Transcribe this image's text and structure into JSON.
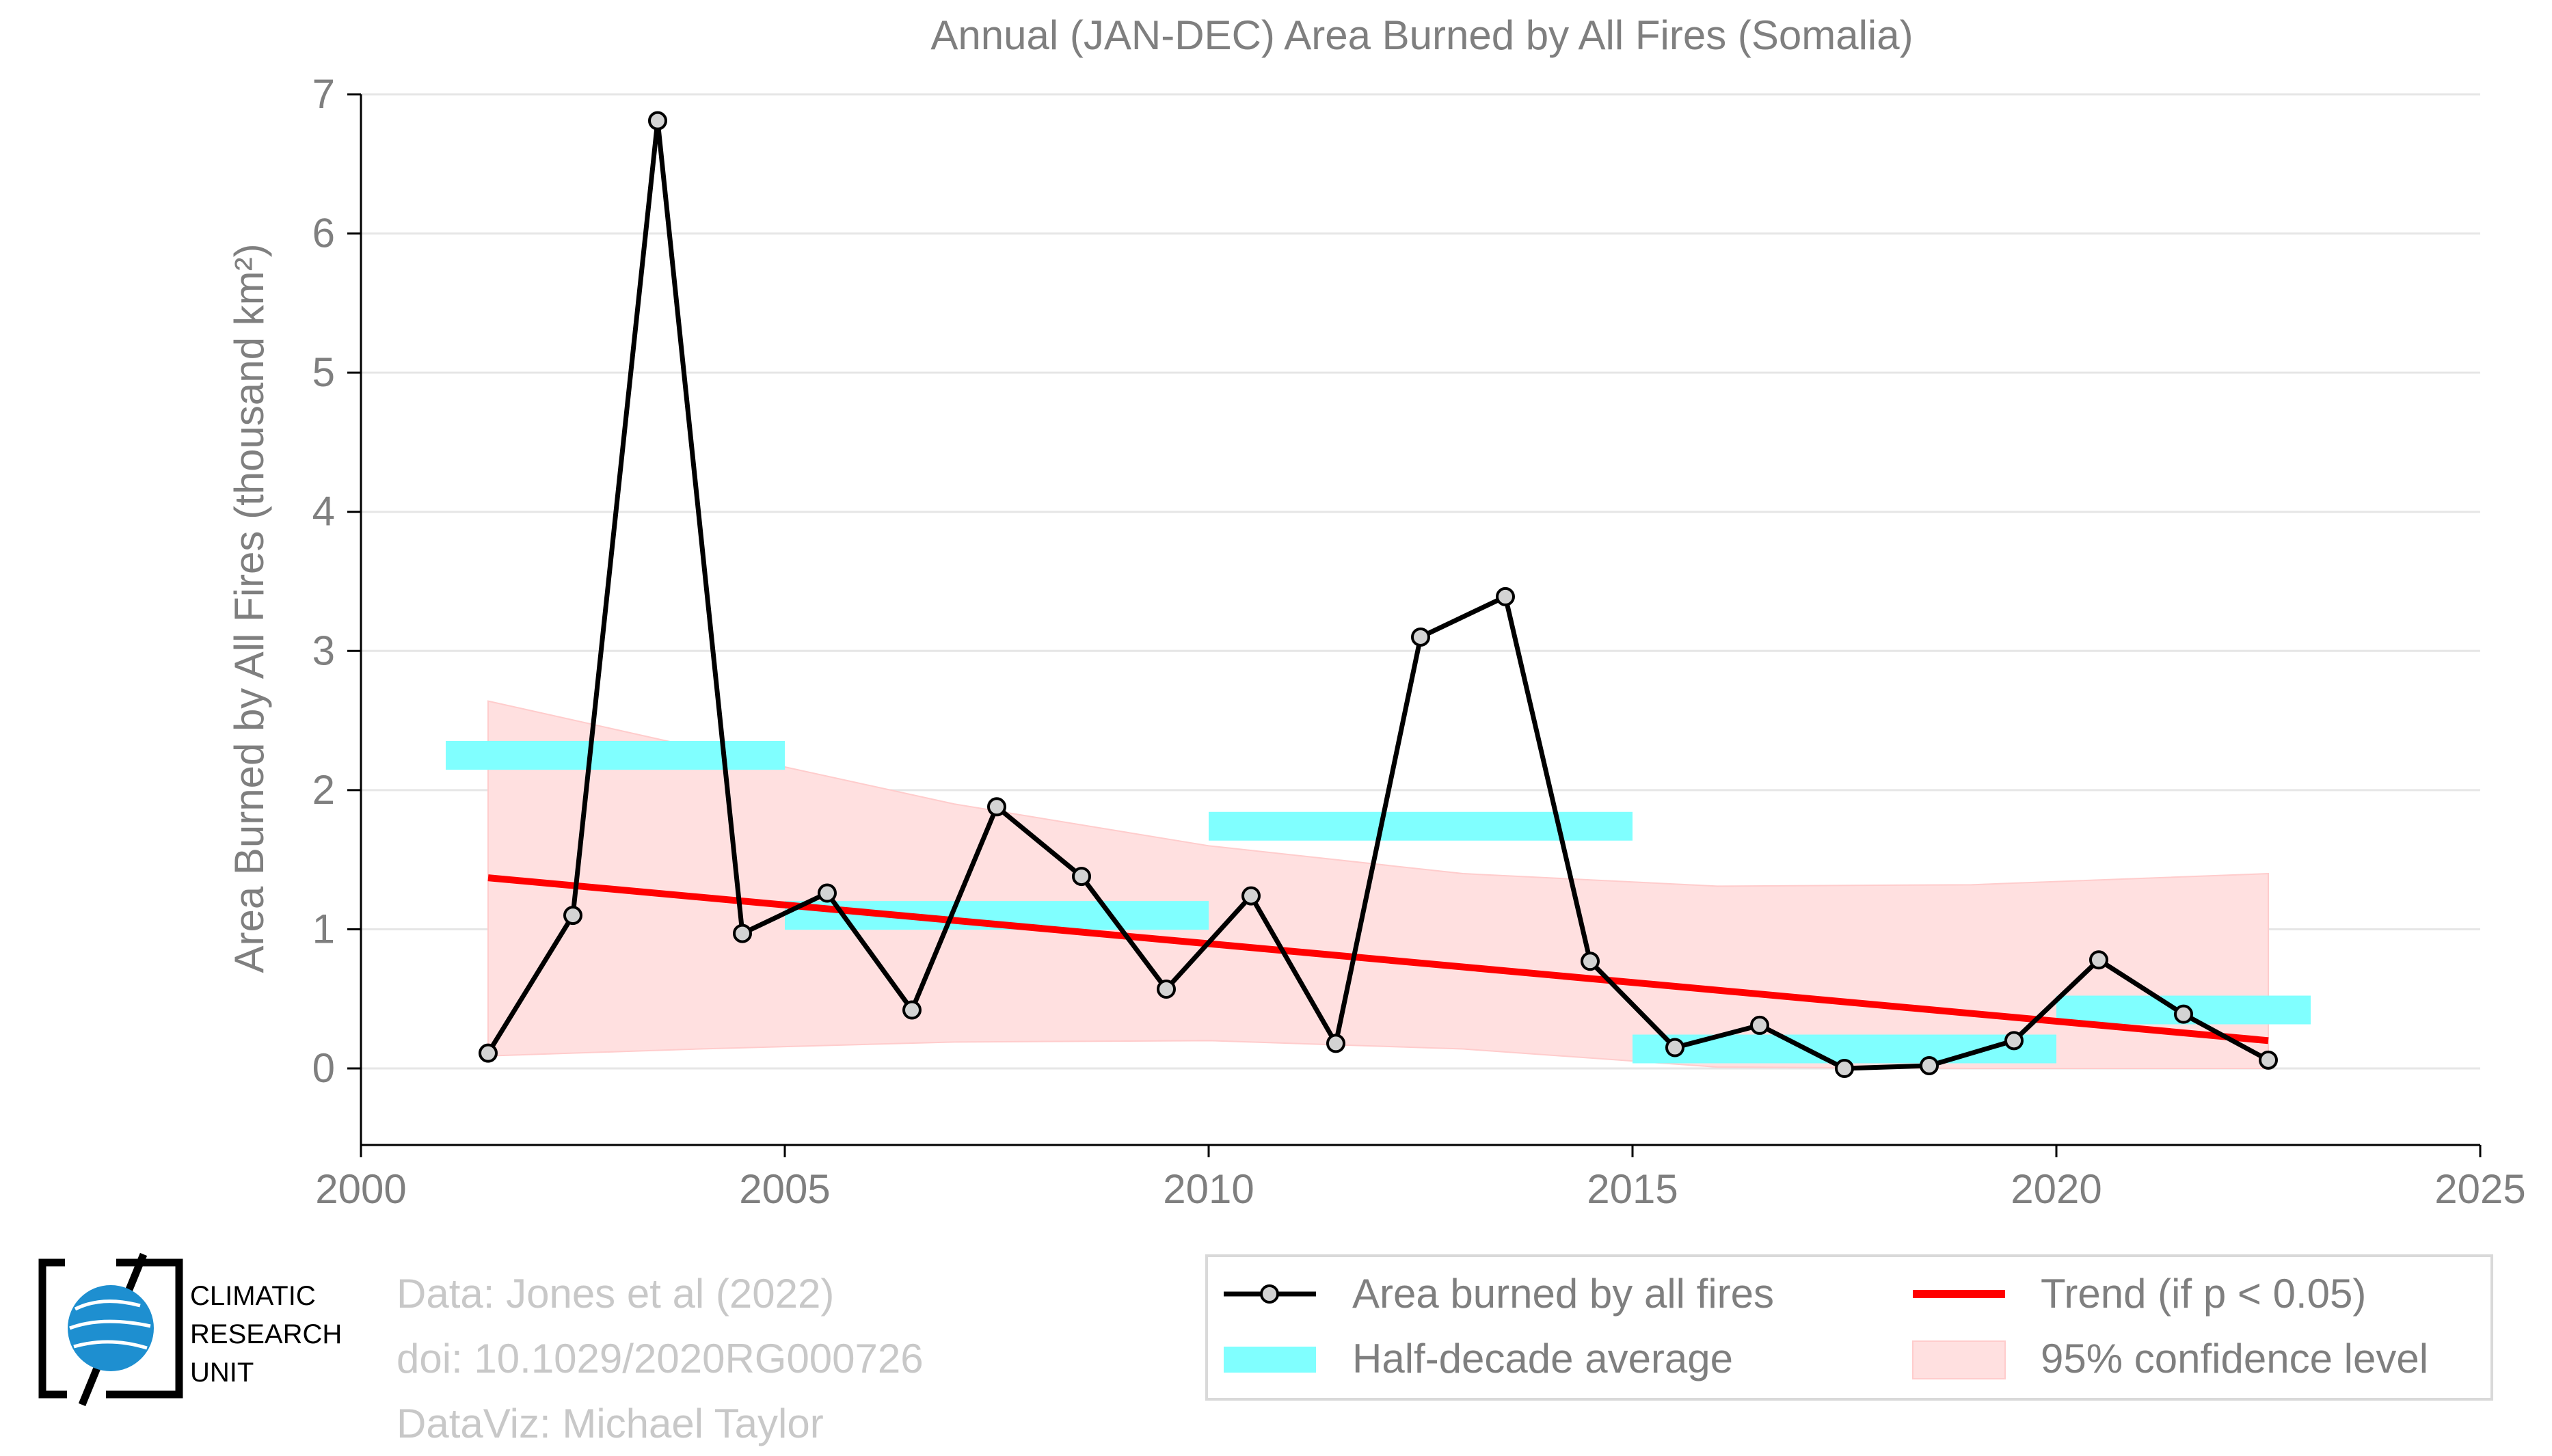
{
  "chart_data": {
    "type": "line",
    "title": "Annual (JAN-DEC) Area Burned by All Fires (Somalia)",
    "xlabel": "",
    "ylabel": "Area Burned by All Fires (thousand km²)",
    "xlim": [
      2000,
      2025
    ],
    "ylim": [
      -0.55,
      7
    ],
    "x_ticks": [
      2000,
      2005,
      2010,
      2015,
      2020,
      2025
    ],
    "y_ticks": [
      0,
      1,
      2,
      3,
      4,
      5,
      6,
      7
    ],
    "grid": "horizontal",
    "legend_position": "bottom-right",
    "series": [
      {
        "name": "Area burned by all fires",
        "color": "#000000",
        "x": [
          2001.5,
          2002.5,
          2003.5,
          2004.5,
          2005.5,
          2006.5,
          2007.5,
          2008.5,
          2009.5,
          2010.5,
          2011.5,
          2012.5,
          2013.5,
          2014.5,
          2015.5,
          2016.5,
          2017.5,
          2018.5,
          2019.5,
          2020.5,
          2021.5,
          2022.5
        ],
        "y": [
          0.11,
          1.1,
          6.81,
          0.97,
          1.26,
          0.42,
          1.88,
          1.38,
          0.57,
          1.24,
          0.18,
          3.1,
          3.39,
          0.77,
          0.15,
          0.31,
          0.0,
          0.02,
          0.2,
          0.78,
          0.39,
          0.06
        ]
      },
      {
        "name": "Half-decade average",
        "color": "#80ffff",
        "segments": [
          {
            "x0": 2001,
            "x1": 2005,
            "y": 2.25
          },
          {
            "x0": 2005,
            "x1": 2010,
            "y": 1.1
          },
          {
            "x0": 2010,
            "x1": 2015,
            "y": 1.74
          },
          {
            "x0": 2015,
            "x1": 2020,
            "y": 0.14
          },
          {
            "x0": 2020,
            "x1": 2023,
            "y": 0.42
          }
        ]
      },
      {
        "name": "Trend (if p < 0.05)",
        "color": "#ff0000",
        "x": [
          2001.5,
          2022.5
        ],
        "y": [
          1.37,
          0.2
        ]
      },
      {
        "name": "95% confidence level",
        "color": "#ffe0e0",
        "x": [
          2001.5,
          2004,
          2007,
          2010,
          2013,
          2016,
          2019,
          2022.5
        ],
        "upper": [
          2.64,
          2.3,
          1.9,
          1.6,
          1.4,
          1.31,
          1.32,
          1.4
        ],
        "lower": [
          0.09,
          0.14,
          0.19,
          0.2,
          0.14,
          0.01,
          0.0,
          0.0
        ]
      }
    ]
  },
  "credits": [
    "Data: Jones et al (2022)",
    "doi: 10.1029/2020RG000726",
    "DataViz: Michael Taylor"
  ],
  "logo_text": [
    "CLIMATIC",
    "RESEARCH",
    "UNIT"
  ]
}
